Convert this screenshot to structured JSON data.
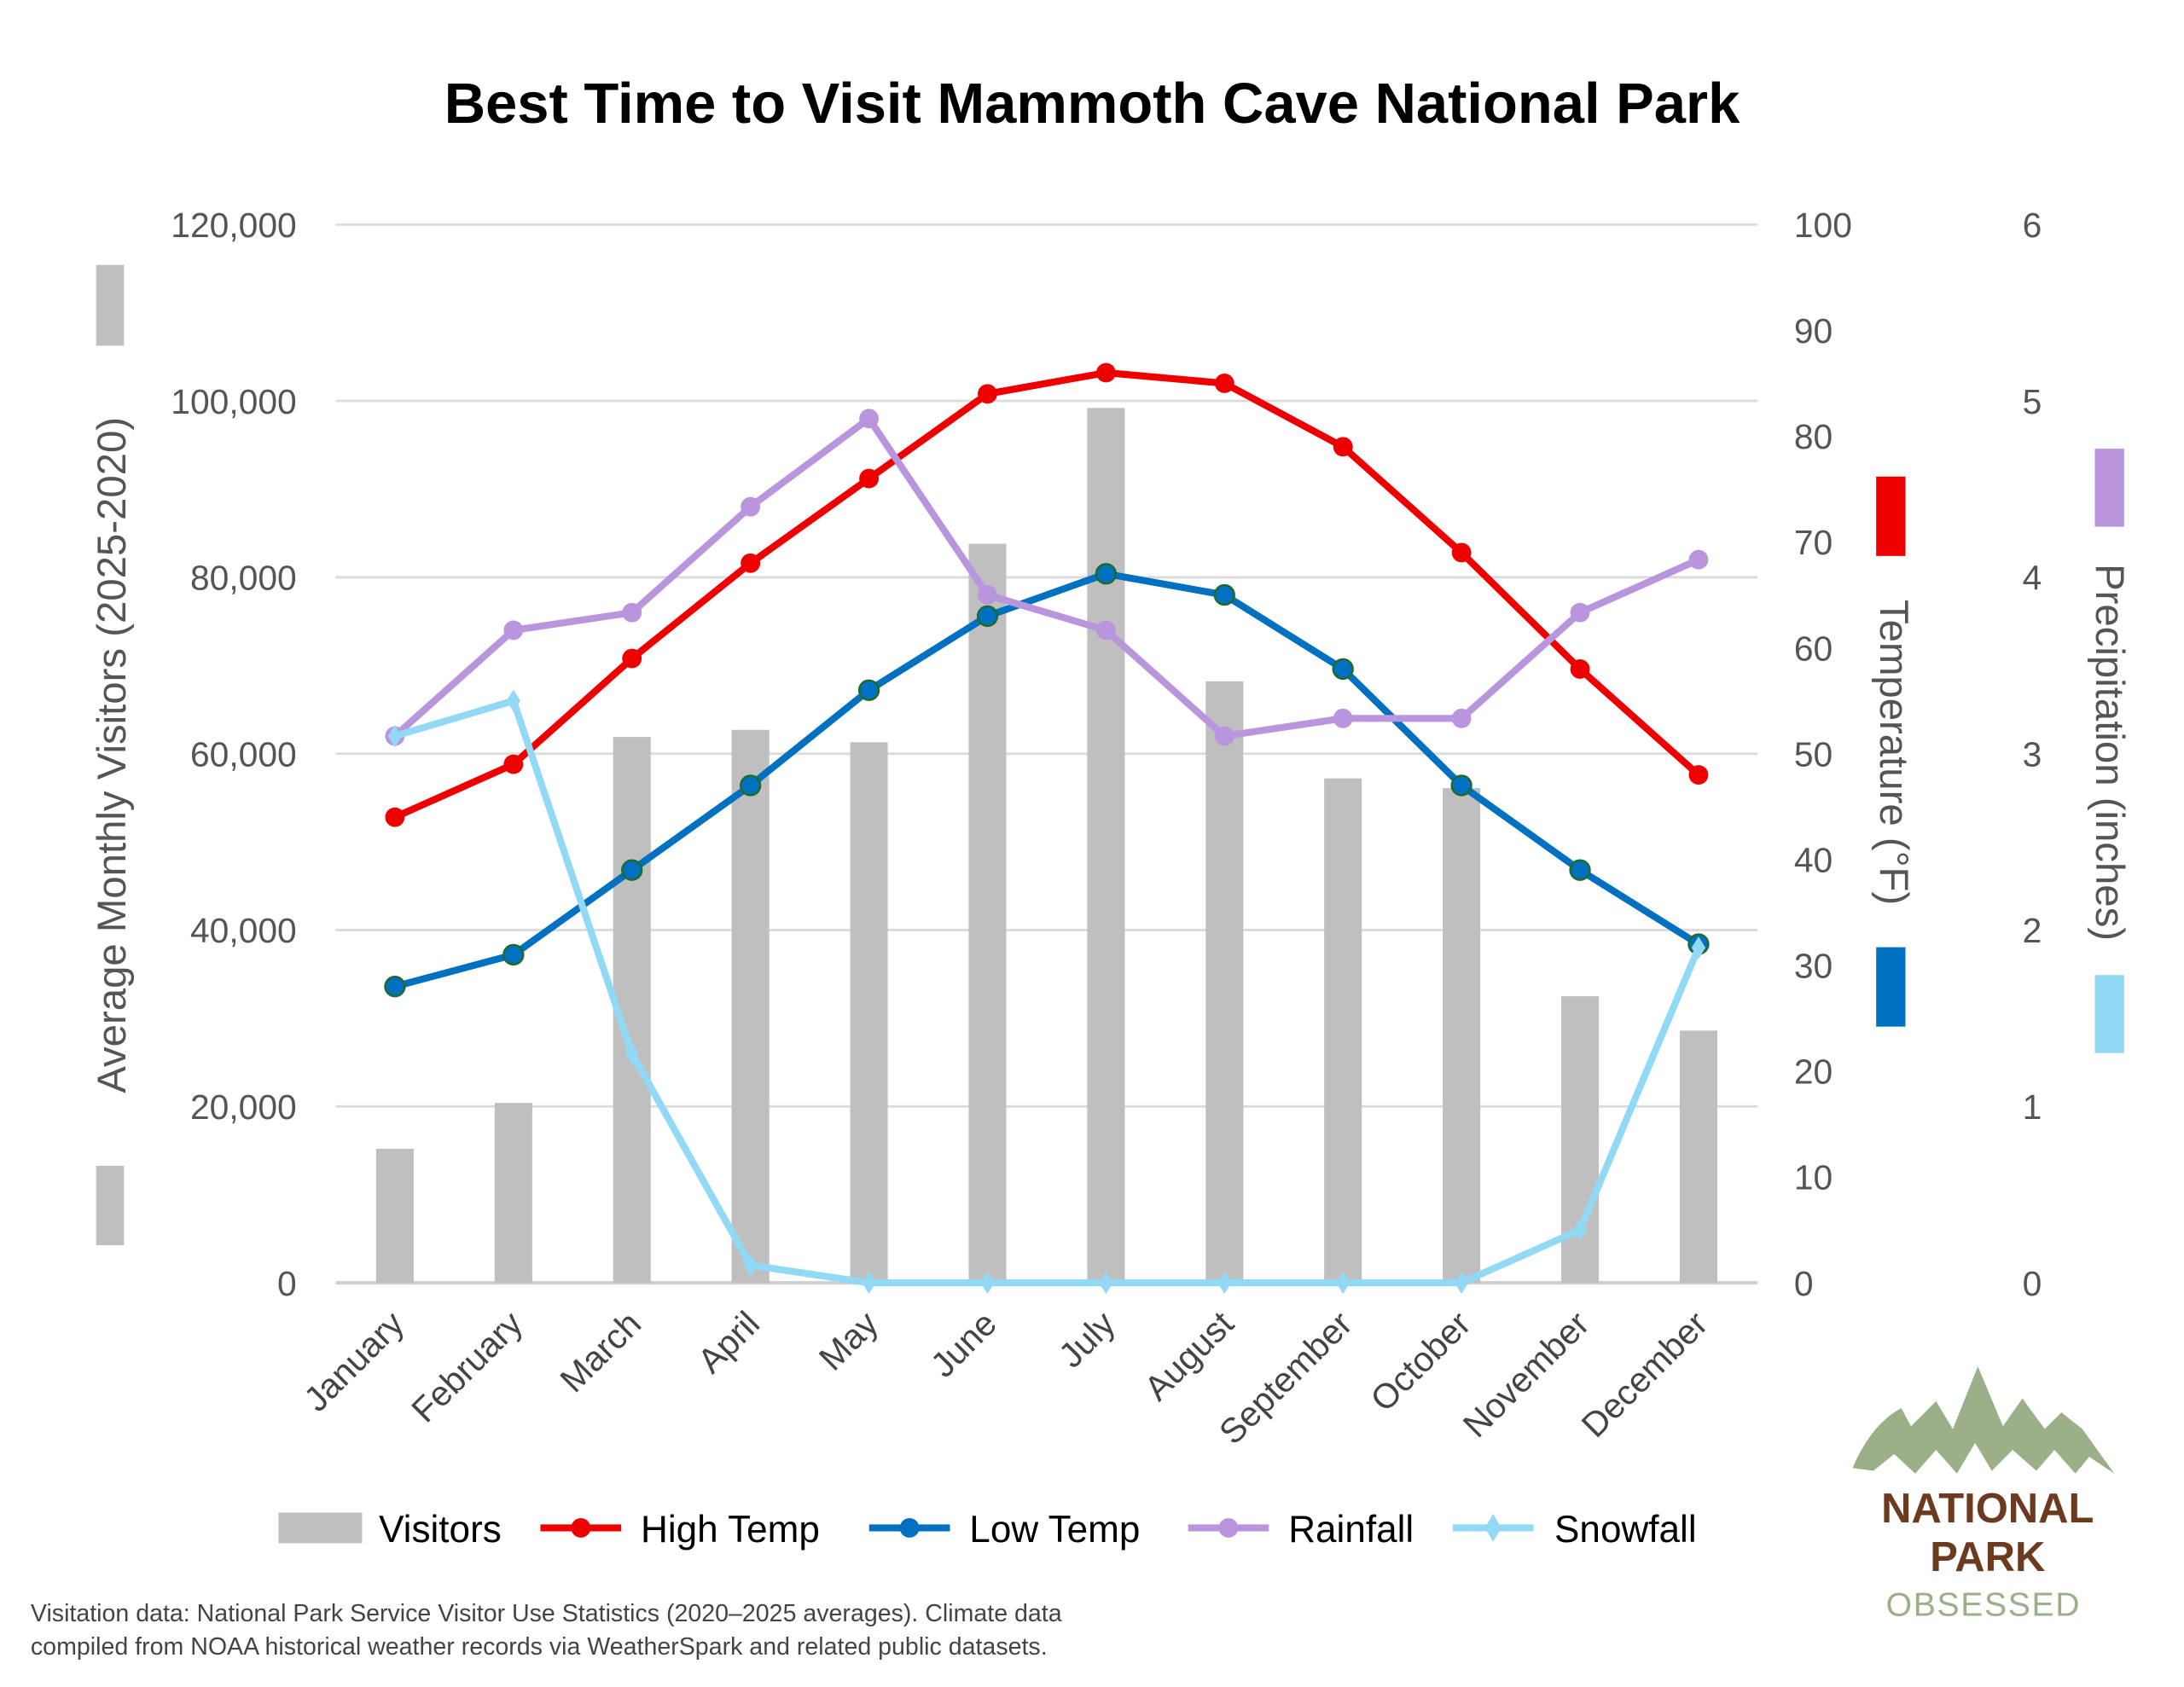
{
  "chart_data": {
    "type": "bar+line",
    "title": "Best Time to Visit Mammoth Cave National Park",
    "categories": [
      "January",
      "February",
      "March",
      "April",
      "May",
      "June",
      "July",
      "August",
      "September",
      "October",
      "November",
      "December"
    ],
    "axes": {
      "left": {
        "label": "Average Monthly Visitors (2025-2020)",
        "ylim": [
          0,
          120000
        ],
        "ticks": [
          "0",
          "20,000",
          "40,000",
          "60,000",
          "80,000",
          "100,000",
          "120,000"
        ]
      },
      "right_temp": {
        "label": "Temperature (°F)",
        "ylim": [
          0,
          100
        ],
        "ticks": [
          "0",
          "10",
          "20",
          "30",
          "40",
          "50",
          "60",
          "70",
          "80",
          "90",
          "100"
        ]
      },
      "right_precip": {
        "label": "Precipitation (inches)",
        "ylim": [
          0,
          6
        ],
        "ticks": [
          "0",
          "1",
          "2",
          "3",
          "4",
          "5",
          "6"
        ]
      }
    },
    "grid": true,
    "legend_position": "bottom",
    "series": [
      {
        "name": "Visitors",
        "type": "bar",
        "axis": "left",
        "color": "#bfbfbf",
        "values": [
          15200,
          20400,
          61900,
          62700,
          61300,
          83800,
          99200,
          68200,
          57200,
          56100,
          32500,
          28600
        ]
      },
      {
        "name": "High Temp",
        "type": "line",
        "axis": "right_temp",
        "color": "#ee0000",
        "marker": "circle",
        "values": [
          44,
          49,
          59,
          68,
          76,
          84,
          86,
          85,
          79,
          69,
          58,
          48
        ]
      },
      {
        "name": "Low Temp",
        "type": "line",
        "axis": "right_temp",
        "color": "#0070c0",
        "marker": "circle",
        "values": [
          28,
          31,
          39,
          47,
          56,
          63,
          67,
          65,
          58,
          47,
          39,
          32
        ]
      },
      {
        "name": "Rainfall",
        "type": "line",
        "axis": "right_precip",
        "color": "#b995de",
        "marker": "circle",
        "values": [
          3.1,
          3.7,
          3.8,
          4.4,
          4.9,
          3.9,
          3.7,
          3.1,
          3.2,
          3.2,
          3.8,
          4.1
        ]
      },
      {
        "name": "Snowfall",
        "type": "line",
        "axis": "right_precip",
        "color": "#92d9f5",
        "marker": "diamond",
        "values": [
          3.1,
          3.3,
          1.3,
          0.1,
          0,
          0,
          0,
          0,
          0,
          0,
          0.3,
          1.9
        ]
      }
    ]
  },
  "footer": {
    "line1": "Visitation data: National Park Service Visitor Use Statistics (2020–2025 averages). Climate data",
    "line2": "compiled from NOAA historical weather records via WeatherSpark and related public datasets."
  },
  "logo": {
    "line1": "NATIONAL",
    "line2": "PARK",
    "line3": "OBSESSED",
    "colors": {
      "mountain": "#9bb088",
      "text": "#6b3a1f",
      "sub": "#9bb088"
    }
  }
}
